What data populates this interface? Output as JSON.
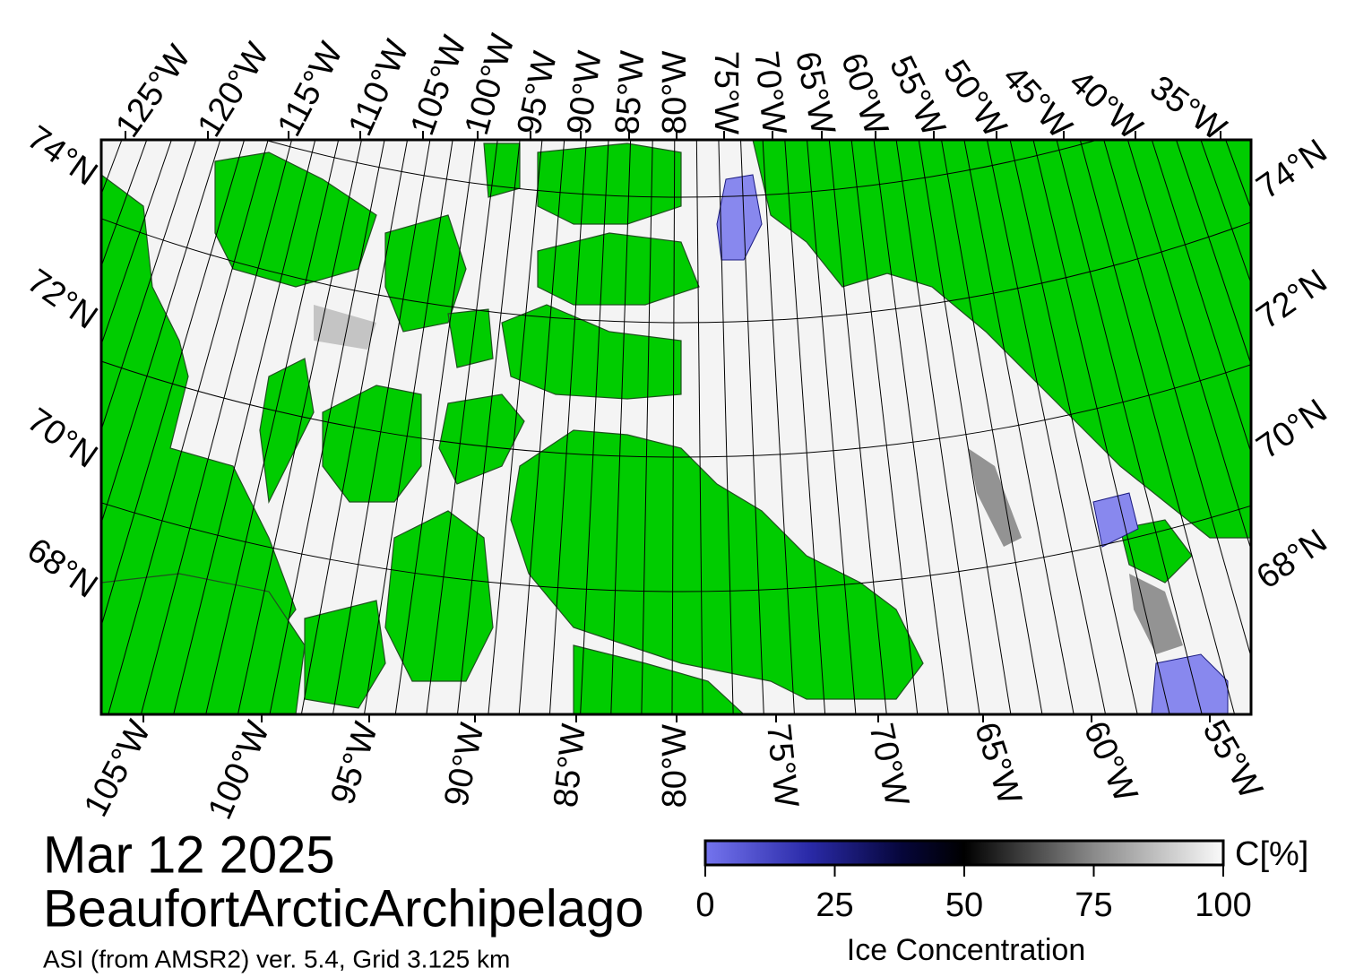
{
  "title": "Mar 12 2025",
  "region": "BeaufortArcticArchipelago",
  "source": "ASI (from AMSR2) ver. 5.4,  Grid 3.125 km",
  "map": {
    "top_labels": [
      "125°W",
      "120°W",
      "115°W",
      "110°W",
      "105°W",
      "100°W",
      "95°W",
      "90°W",
      "85°W",
      "80°W",
      "75°W",
      "70°W",
      "65°W",
      "60°W",
      "55°W",
      "50°W",
      "45°W",
      "40°W",
      "35°W"
    ],
    "bottom_labels": [
      "105°W",
      "100°W",
      "95°W",
      "90°W",
      "85°W",
      "80°W",
      "75°W",
      "70°W",
      "65°W",
      "60°W",
      "55°W"
    ],
    "left_labels": [
      "74°N",
      "72°N",
      "70°N",
      "68°N"
    ],
    "right_labels": [
      "74°N",
      "72°N",
      "70°N",
      "68°N"
    ]
  },
  "colorbar": {
    "unit": "C[%]",
    "label": "Ice Concentration",
    "range": [
      0,
      100
    ],
    "ticks": [
      0,
      25,
      50,
      75,
      100
    ]
  }
}
